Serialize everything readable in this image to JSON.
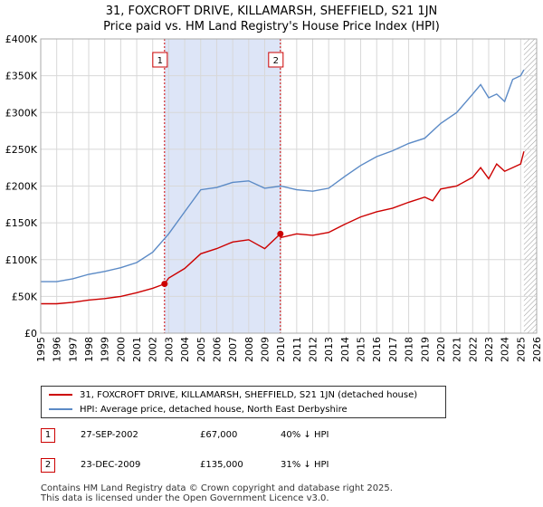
{
  "title_line1": "31, FOXCROFT DRIVE, KILLAMARSH, SHEFFIELD, S21 1JN",
  "title_line2": "Price paid vs. HM Land Registry's House Price Index (HPI)",
  "colors": {
    "property": "#cc0000",
    "hpi": "#5b8ac6",
    "shade": "#dde5f7",
    "grid": "#d8d8d8"
  },
  "legend": {
    "property_label": "31, FOXCROFT DRIVE, KILLAMARSH, SHEFFIELD, S21 1JN (detached house)",
    "hpi_label": "HPI: Average price, detached house, North East Derbyshire"
  },
  "sales": [
    {
      "num": "1",
      "date": "27-SEP-2002",
      "price": "£67,000",
      "hpi_diff": "40% ↓ HPI"
    },
    {
      "num": "2",
      "date": "23-DEC-2009",
      "price": "£135,000",
      "hpi_diff": "31% ↓ HPI"
    }
  ],
  "footer_line1": "Contains HM Land Registry data © Crown copyright and database right 2025.",
  "footer_line2": "This data is licensed under the Open Government Licence v3.0.",
  "chart_data": {
    "type": "line",
    "title": "31, FOXCROFT DRIVE, KILLAMARSH, SHEFFIELD, S21 1JN — Price paid vs. HM Land Registry's House Price Index (HPI)",
    "xlim": [
      1995,
      2026
    ],
    "ylim": [
      0,
      400000
    ],
    "x_ticks": [
      1995,
      1996,
      1997,
      1998,
      1999,
      2000,
      2001,
      2002,
      2003,
      2004,
      2005,
      2006,
      2007,
      2008,
      2009,
      2010,
      2011,
      2012,
      2013,
      2014,
      2015,
      2016,
      2017,
      2018,
      2019,
      2020,
      2021,
      2022,
      2023,
      2024,
      2025,
      2026
    ],
    "y_ticks": [
      0,
      50000,
      100000,
      150000,
      200000,
      250000,
      300000,
      350000,
      400000
    ],
    "y_tick_labels": [
      "£0",
      "£50K",
      "£100K",
      "£150K",
      "£200K",
      "£250K",
      "£300K",
      "£350K",
      "£400K"
    ],
    "shaded_period": [
      2002.74,
      2009.98
    ],
    "future_hatch_from": 2025.2,
    "sale_markers": [
      {
        "label": "1",
        "x": 2002.74,
        "y": 67000
      },
      {
        "label": "2",
        "x": 2009.98,
        "y": 135000
      }
    ],
    "series": [
      {
        "name": "31, FOXCROFT DRIVE, KILLAMARSH, SHEFFIELD, S21 1JN (detached house)",
        "x": [
          1995,
          1996,
          1997,
          1998,
          1999,
          2000,
          2001,
          2002,
          2002.74,
          2003,
          2004,
          2005,
          2006,
          2007,
          2008,
          2008.5,
          2009,
          2009.98,
          2010,
          2011,
          2012,
          2013,
          2014,
          2015,
          2016,
          2017,
          2018,
          2019,
          2019.5,
          2020,
          2021,
          2022,
          2022.5,
          2023,
          2023.5,
          2024,
          2025,
          2025.2
        ],
        "values": [
          40000,
          40000,
          42000,
          45000,
          47000,
          50000,
          55000,
          61000,
          67000,
          75000,
          88000,
          108000,
          115000,
          124000,
          127000,
          121000,
          115000,
          135000,
          130000,
          135000,
          133000,
          137000,
          148000,
          158000,
          165000,
          170000,
          178000,
          185000,
          180000,
          196000,
          200000,
          212000,
          225000,
          210000,
          230000,
          220000,
          230000,
          247000
        ]
      },
      {
        "name": "HPI: Average price, detached house, North East Derbyshire",
        "x": [
          1995,
          1996,
          1997,
          1998,
          1999,
          2000,
          2001,
          2002,
          2003,
          2004,
          2005,
          2006,
          2007,
          2008,
          2008.7,
          2009,
          2010,
          2011,
          2012,
          2013,
          2014,
          2015,
          2016,
          2017,
          2018,
          2019,
          2020,
          2021,
          2022,
          2022.5,
          2023,
          2023.5,
          2024,
          2024.5,
          2025,
          2025.2
        ],
        "values": [
          70000,
          70000,
          74000,
          80000,
          84000,
          89000,
          96000,
          110000,
          135000,
          165000,
          195000,
          198000,
          205000,
          207000,
          200000,
          197000,
          200000,
          195000,
          193000,
          197000,
          213000,
          228000,
          240000,
          248000,
          258000,
          265000,
          285000,
          300000,
          325000,
          338000,
          320000,
          325000,
          315000,
          345000,
          350000,
          358000
        ]
      }
    ]
  }
}
